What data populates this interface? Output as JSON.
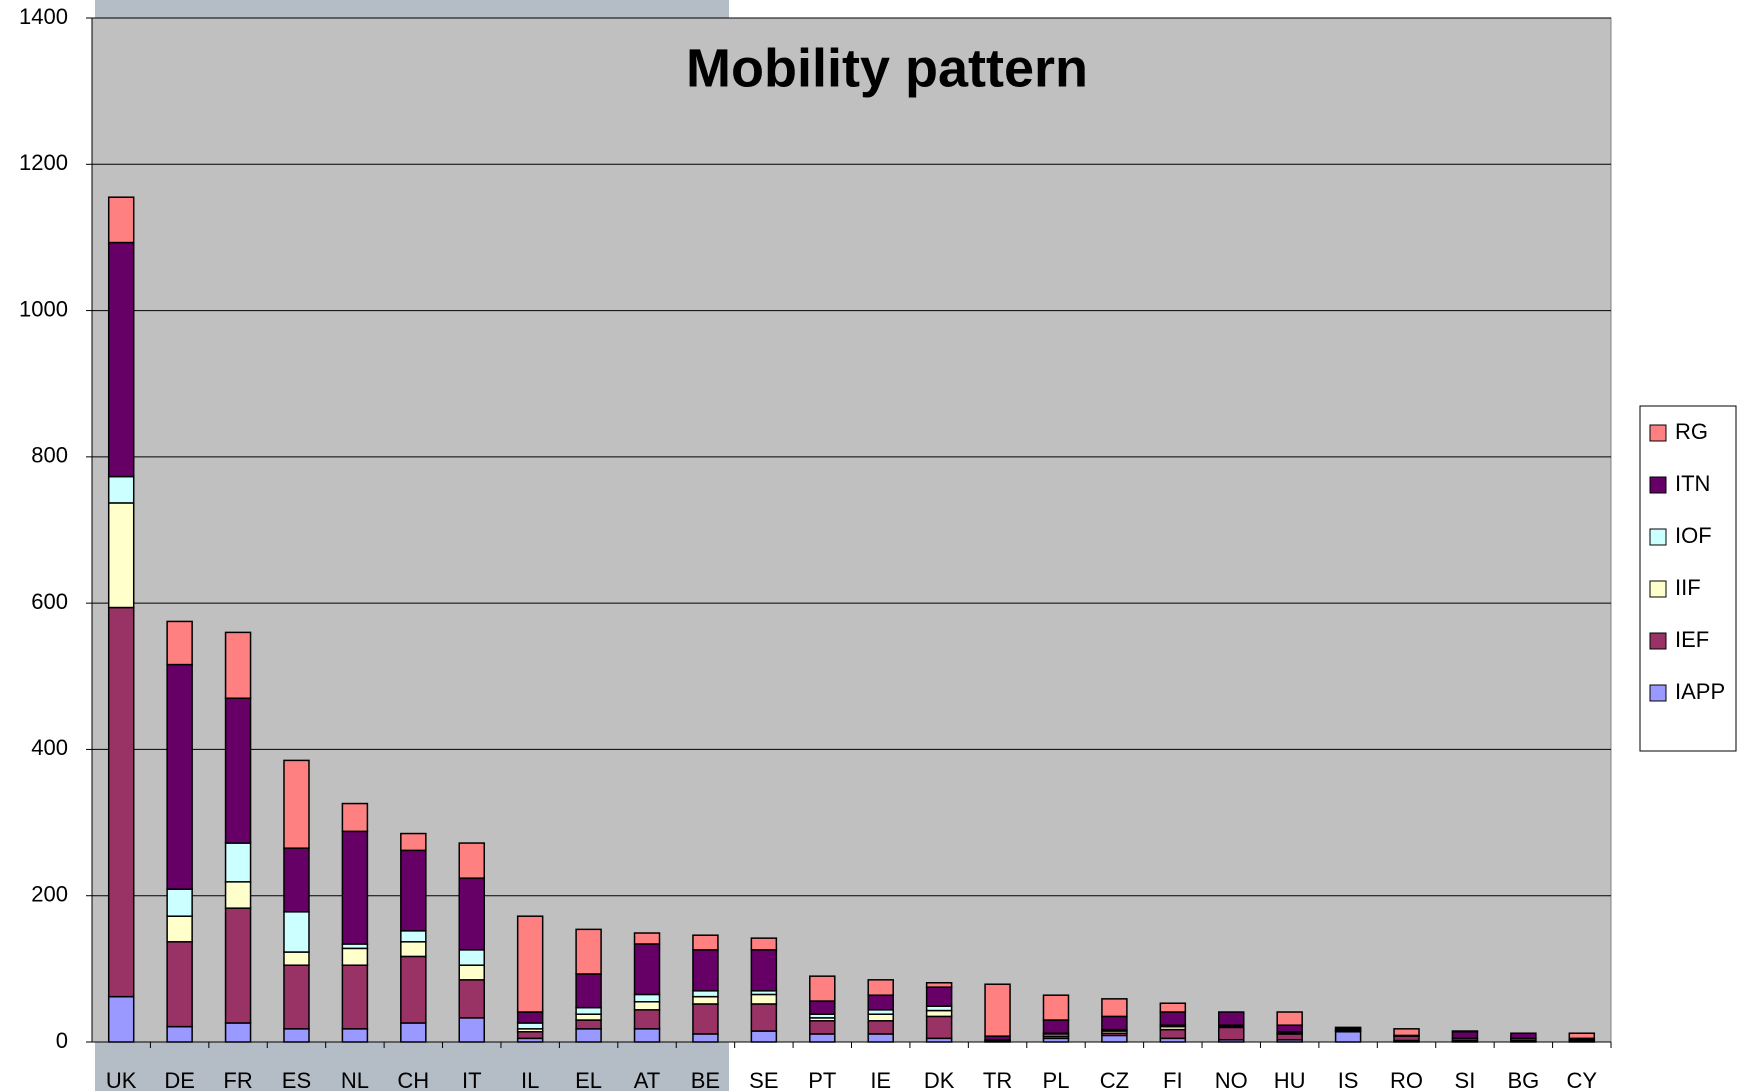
{
  "chart_data": {
    "type": "stacked_bar",
    "title": "Mobility pattern",
    "categories": [
      "UK",
      "DE",
      "FR",
      "ES",
      "NL",
      "CH",
      "IT",
      "IL",
      "EL",
      "AT",
      "BE",
      "SE",
      "PT",
      "IE",
      "DK",
      "TR",
      "PL",
      "CZ",
      "FI",
      "NO",
      "HU",
      "IS",
      "RO",
      "SI",
      "BG",
      "CY"
    ],
    "series": [
      {
        "name": "IAPP",
        "color": "#9999ff",
        "values": [
          62,
          21,
          26,
          18,
          18,
          26,
          33,
          5,
          18,
          18,
          11,
          15,
          11,
          11,
          5,
          2,
          5,
          9,
          5,
          3,
          3,
          14,
          2,
          2,
          2,
          2
        ]
      },
      {
        "name": "IEF",
        "color": "#993366",
        "values": [
          532,
          116,
          157,
          87,
          87,
          91,
          52,
          9,
          12,
          26,
          41,
          37,
          18,
          18,
          30,
          1,
          3,
          3,
          12,
          17,
          8,
          1,
          6,
          3,
          3,
          1
        ]
      },
      {
        "name": "IIF",
        "color": "#ffffcc",
        "values": [
          143,
          35,
          36,
          18,
          23,
          20,
          20,
          4,
          8,
          11,
          10,
          13,
          4,
          9,
          8,
          0,
          3,
          3,
          4,
          1,
          1,
          2,
          0,
          0,
          0,
          0
        ]
      },
      {
        "name": "IOF",
        "color": "#ccffff",
        "values": [
          36,
          37,
          53,
          55,
          6,
          15,
          21,
          8,
          9,
          10,
          8,
          5,
          5,
          6,
          6,
          0,
          1,
          2,
          2,
          2,
          2,
          1,
          0,
          0,
          0,
          0
        ]
      },
      {
        "name": "ITN",
        "color": "#660066",
        "values": [
          320,
          307,
          198,
          87,
          154,
          110,
          98,
          15,
          46,
          69,
          56,
          56,
          18,
          20,
          26,
          5,
          18,
          18,
          18,
          18,
          9,
          2,
          1,
          9,
          7,
          2
        ]
      },
      {
        "name": "RG",
        "color": "#ff8080",
        "values": [
          62,
          59,
          90,
          120,
          38,
          23,
          48,
          131,
          61,
          15,
          20,
          16,
          34,
          21,
          6,
          71,
          34,
          24,
          12,
          0,
          18,
          0,
          9,
          1,
          0,
          7
        ]
      }
    ],
    "ylim": [
      0,
      1400
    ],
    "yticks": [
      0,
      200,
      400,
      600,
      800,
      1000,
      1200,
      1400
    ],
    "grid": true,
    "legend": "right"
  }
}
